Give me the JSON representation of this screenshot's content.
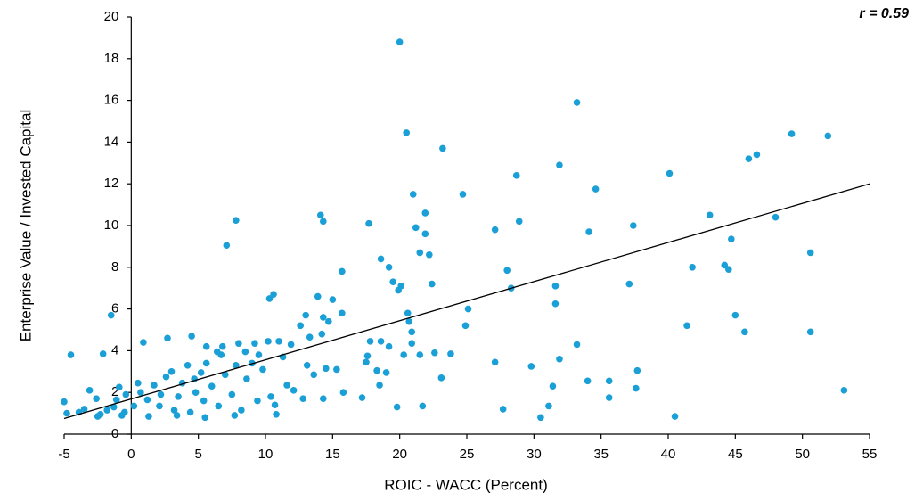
{
  "chart_data": {
    "type": "scatter",
    "annotation": "r = 0.59",
    "x_label": "ROIC - WACC (Percent)",
    "y_label": "Enterprise Value / Invested Capital",
    "color": "#1a9fd6",
    "xlim": [
      -5,
      55
    ],
    "ylim": [
      0,
      20
    ],
    "xticks": [
      -5,
      0,
      5,
      10,
      15,
      20,
      25,
      30,
      35,
      40,
      45,
      50,
      55
    ],
    "yticks": [
      0,
      2,
      4,
      6,
      8,
      10,
      12,
      14,
      16,
      18,
      20
    ],
    "x": [
      20.0,
      20.5,
      23.2,
      33.2,
      49.2,
      51.9,
      46.6,
      46.0,
      31.9,
      28.7,
      40.1,
      21.0,
      24.7,
      34.6,
      14.1,
      14.3,
      7.8,
      7.1,
      17.7,
      21.9,
      21.2,
      21.9,
      27.1,
      28.9,
      34.1,
      37.4,
      43.1,
      48.0,
      44.7,
      50.6,
      21.5,
      22.2,
      18.6,
      19.2,
      19.5,
      20.1,
      19.9,
      22.4,
      15.7,
      28.0,
      28.3,
      31.6,
      37.1,
      41.8,
      44.2,
      44.5,
      31.6,
      25.1,
      24.9,
      20.6,
      20.7,
      41.4,
      45.0,
      45.7,
      50.6,
      33.2,
      10.3,
      10.6,
      13.9,
      15.0,
      15.7,
      14.3,
      14.7,
      13.0,
      12.6,
      13.3,
      14.2,
      11.9,
      10.2,
      11.0,
      9.2,
      8.0,
      6.8,
      5.6,
      4.5,
      2.7,
      0.9,
      -1.5,
      -2.1,
      -4.5,
      20.9,
      20.9,
      17.8,
      18.6,
      19.2,
      17.6,
      20.3,
      21.5,
      22.6,
      23.8,
      29.8,
      31.9,
      27.1,
      34.0,
      35.6,
      37.7,
      37.6,
      31.4,
      35.6,
      31.1,
      30.5,
      27.7,
      40.5,
      53.1,
      23.1,
      21.7,
      19.8,
      17.5,
      18.3,
      19.0,
      14.5,
      15.3,
      18.5,
      17.2,
      15.8,
      14.3,
      -5.0,
      -4.8,
      -3.9,
      -3.1,
      -2.6,
      -3.5,
      -2.3,
      -1.8,
      -1.3,
      -0.9,
      -0.4,
      -0.5,
      0.2,
      0.7,
      1.2,
      1.7,
      2.1,
      2.6,
      3.0,
      3.2,
      3.5,
      3.8,
      4.2,
      4.4,
      4.8,
      5.2,
      5.4,
      5.6,
      6.0,
      6.5,
      6.7,
      7.0,
      7.5,
      7.8,
      8.2,
      8.6,
      9.0,
      9.4,
      9.8,
      10.4,
      10.8,
      11.3,
      11.6,
      12.1,
      12.8,
      13.1,
      13.6,
      10.7,
      7.7,
      5.5,
      3.4,
      1.3,
      -0.7,
      -2.5,
      0.5,
      -1.1,
      2.2,
      4.7,
      6.4,
      8.5,
      9.5
    ],
    "values": [
      18.8,
      14.45,
      13.7,
      15.9,
      14.4,
      14.3,
      13.4,
      13.2,
      12.9,
      12.4,
      12.5,
      11.5,
      11.5,
      11.75,
      10.5,
      10.2,
      10.25,
      9.05,
      10.1,
      10.6,
      9.9,
      9.6,
      9.8,
      10.2,
      9.7,
      10.0,
      10.5,
      10.4,
      9.35,
      8.7,
      8.7,
      8.6,
      8.4,
      8.0,
      7.3,
      7.1,
      6.9,
      7.2,
      7.8,
      7.85,
      7.0,
      7.1,
      7.2,
      8.0,
      8.1,
      7.9,
      6.25,
      6.0,
      5.2,
      5.8,
      5.4,
      5.2,
      5.7,
      4.9,
      4.9,
      4.3,
      6.5,
      6.7,
      6.6,
      6.45,
      5.8,
      5.6,
      5.4,
      5.7,
      5.2,
      4.65,
      4.8,
      4.3,
      4.45,
      4.45,
      4.35,
      4.35,
      4.2,
      4.2,
      4.7,
      4.6,
      4.4,
      5.7,
      3.85,
      3.8,
      4.9,
      4.35,
      4.45,
      4.45,
      4.2,
      3.75,
      3.8,
      3.8,
      3.9,
      3.85,
      3.25,
      3.6,
      3.45,
      2.55,
      2.55,
      3.05,
      2.2,
      2.3,
      1.75,
      1.35,
      0.8,
      1.2,
      0.85,
      2.1,
      2.7,
      1.35,
      1.3,
      3.45,
      3.05,
      2.95,
      3.15,
      3.1,
      2.35,
      1.75,
      2.0,
      1.7,
      1.55,
      1.0,
      1.05,
      2.1,
      1.7,
      1.2,
      0.95,
      1.15,
      1.3,
      2.25,
      1.9,
      1.05,
      1.35,
      2.0,
      1.65,
      2.35,
      1.35,
      2.75,
      3.0,
      1.15,
      1.8,
      2.45,
      3.3,
      1.05,
      2.0,
      2.95,
      1.6,
      3.4,
      2.3,
      1.35,
      3.8,
      2.85,
      1.9,
      3.3,
      1.15,
      2.65,
      3.4,
      1.6,
      3.1,
      1.8,
      0.95,
      3.7,
      2.35,
      2.1,
      1.7,
      3.3,
      2.85,
      1.4,
      0.9,
      0.8,
      0.9,
      0.85,
      0.9,
      0.85,
      2.45,
      1.65,
      1.9,
      2.65,
      3.95,
      3.95,
      3.8
    ],
    "trendline": {
      "x": [
        -5,
        55
      ],
      "values": [
        0.75,
        12
      ],
      "color": "#000000"
    }
  }
}
